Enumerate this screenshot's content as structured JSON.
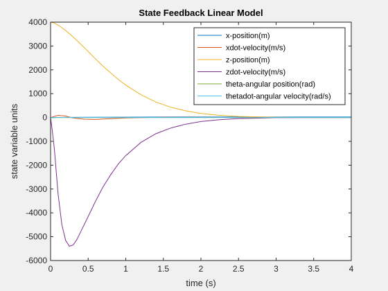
{
  "chart_data": {
    "type": "line",
    "title": "State Feedback Linear Model",
    "xlabel": "time (s)",
    "ylabel": "state variable units",
    "xlim": [
      0,
      4
    ],
    "ylim": [
      -6000,
      4000
    ],
    "xticks": [
      0,
      0.5,
      1,
      1.5,
      2,
      2.5,
      3,
      3.5,
      4
    ],
    "xtick_labels": [
      "0",
      "0.5",
      "1",
      "1.5",
      "2",
      "2.5",
      "3",
      "3.5",
      "4"
    ],
    "yticks": [
      -6000,
      -5000,
      -4000,
      -3000,
      -2000,
      -1000,
      0,
      1000,
      2000,
      3000,
      4000
    ],
    "ytick_labels": [
      "-6000",
      "-5000",
      "-4000",
      "-3000",
      "-2000",
      "-1000",
      "0",
      "1000",
      "2000",
      "3000",
      "4000"
    ],
    "grid": false,
    "legend_position": "top-right",
    "series": [
      {
        "name": "x-position(m)",
        "color": "#0072BD",
        "x": [
          0,
          0.25,
          0.5,
          1,
          1.5,
          2,
          2.5,
          3,
          3.5,
          4
        ],
        "y": [
          0,
          5,
          10,
          15,
          20,
          20,
          20,
          20,
          20,
          20
        ]
      },
      {
        "name": "xdot-velocity(m/s)",
        "color": "#D95319",
        "x": [
          0,
          0.1,
          0.2,
          0.3,
          0.45,
          0.6,
          0.8,
          1,
          1.5,
          2,
          3,
          4
        ],
        "y": [
          0,
          90,
          60,
          -20,
          -70,
          -80,
          -50,
          -20,
          10,
          5,
          0,
          0
        ]
      },
      {
        "name": "z-position(m)",
        "color": "#EDB120",
        "x": [
          0,
          0.05,
          0.1,
          0.2,
          0.3,
          0.4,
          0.5,
          0.6,
          0.7,
          0.8,
          0.9,
          1.0,
          1.2,
          1.4,
          1.6,
          1.8,
          2.0,
          2.25,
          2.5,
          3.0,
          3.5,
          4.0
        ],
        "y": [
          4000,
          3960,
          3880,
          3650,
          3380,
          3080,
          2770,
          2450,
          2150,
          1870,
          1600,
          1360,
          960,
          650,
          430,
          280,
          170,
          90,
          45,
          10,
          0,
          0
        ]
      },
      {
        "name": "zdot-velocity(m/s)",
        "color": "#7E2F8E",
        "x": [
          0,
          0.02,
          0.05,
          0.1,
          0.15,
          0.2,
          0.25,
          0.3,
          0.35,
          0.4,
          0.5,
          0.6,
          0.7,
          0.8,
          0.9,
          1.0,
          1.2,
          1.4,
          1.6,
          1.8,
          2.0,
          2.25,
          2.5,
          3.0,
          3.5,
          4.0
        ],
        "y": [
          0,
          -500,
          -1300,
          -3200,
          -4500,
          -5150,
          -5400,
          -5350,
          -5120,
          -4800,
          -4150,
          -3500,
          -2900,
          -2400,
          -1950,
          -1600,
          -1050,
          -680,
          -440,
          -280,
          -170,
          -90,
          -45,
          -10,
          0,
          0
        ]
      },
      {
        "name": "theta-angular position(rad)",
        "color": "#77AC30",
        "x": [
          0,
          1,
          2,
          3,
          4
        ],
        "y": [
          0,
          0,
          0,
          0,
          0
        ]
      },
      {
        "name": "thetadot-angular velocity(rad/s)",
        "color": "#4DBEEE",
        "x": [
          0,
          1,
          2,
          3,
          4
        ],
        "y": [
          0,
          0,
          0,
          0,
          0
        ]
      }
    ]
  }
}
